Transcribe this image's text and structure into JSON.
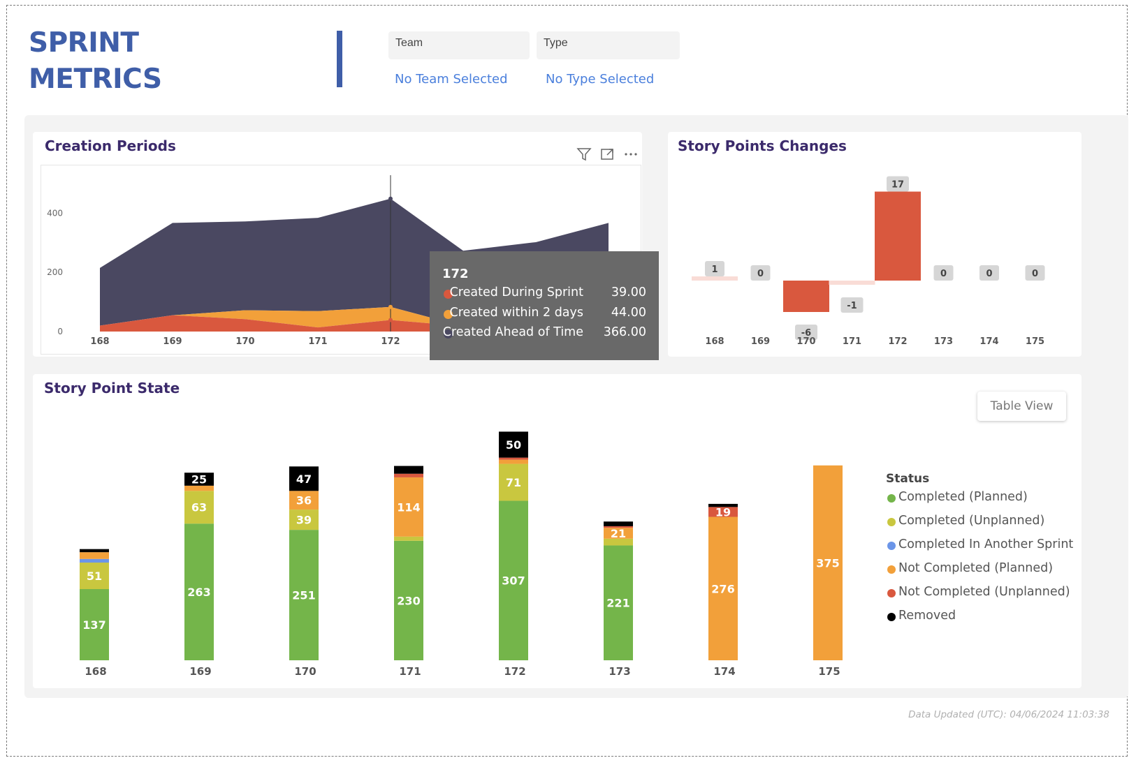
{
  "header": {
    "title_line1": "SPRINT",
    "title_line2": "METRICS",
    "brand_color": "#3f5ea8"
  },
  "filters": {
    "team": {
      "label": "Team",
      "value": "No Team Selected"
    },
    "type": {
      "label": "Type",
      "value": "No Type Selected"
    }
  },
  "creation_periods": {
    "title": "Creation Periods",
    "icons": [
      "filter-icon",
      "focus-mode-icon",
      "more-options-icon"
    ],
    "tooltip": {
      "title": "172",
      "rows": [
        {
          "label": "Created During Sprint",
          "value": "39.00",
          "color": "#d9583e"
        },
        {
          "label": "Created within 2 days",
          "value": "44.00",
          "color": "#f2a03a"
        },
        {
          "label": "Created Ahead of Time",
          "value": "366.00",
          "color": "#4a4861"
        }
      ]
    }
  },
  "story_points_changes": {
    "title": "Story Points Changes"
  },
  "story_point_state": {
    "title": "Story Point State",
    "table_view_label": "Table View",
    "legend": {
      "title": "Status",
      "items": [
        {
          "label": "Completed (Planned)",
          "color": "#74b54a"
        },
        {
          "label": "Completed (Unplanned)",
          "color": "#c9c73f"
        },
        {
          "label": "Completed In Another Sprint",
          "color": "#6b95e8"
        },
        {
          "label": "Not Completed (Planned)",
          "color": "#f2a03a"
        },
        {
          "label": "Not Completed (Unplanned)",
          "color": "#d9583e"
        },
        {
          "label": "Removed",
          "color": "#000000"
        }
      ]
    }
  },
  "footer": {
    "updated": "Data Updated (UTC): 04/06/2024 11:03:38"
  },
  "chart_data": [
    {
      "type": "area",
      "title": "Creation Periods",
      "stacked": true,
      "categories": [
        "168",
        "169",
        "170",
        "171",
        "172",
        "173",
        "174",
        "175"
      ],
      "ylim": [
        0,
        500
      ],
      "yticks": [
        0,
        200,
        400
      ],
      "grid": false,
      "series": [
        {
          "name": "Created During Sprint",
          "color": "#d9583e",
          "values": [
            20,
            55,
            42,
            14,
            39,
            18,
            15,
            17
          ]
        },
        {
          "name": "Created within 2 days",
          "color": "#f2a03a",
          "values": [
            0,
            0,
            30,
            55,
            44,
            0,
            0,
            0
          ]
        },
        {
          "name": "Created Ahead of Time",
          "color": "#4a4861",
          "values": [
            195,
            312,
            300,
            315,
            366,
            255,
            287,
            350
          ]
        }
      ],
      "hover_category": "172"
    },
    {
      "type": "bar",
      "title": "Story Points Changes",
      "categories": [
        "168",
        "169",
        "170",
        "171",
        "172",
        "173",
        "174",
        "175"
      ],
      "values": [
        1,
        0,
        -6,
        -1,
        17,
        0,
        0,
        0
      ],
      "labels": [
        "1",
        "0",
        "-6",
        "-1",
        "17",
        "0",
        "0",
        "0"
      ],
      "color_large": "#d9583e",
      "color_small": "#f9dcd6",
      "ylim": [
        -8,
        19
      ]
    },
    {
      "type": "bar",
      "stacked": true,
      "title": "Story Point State",
      "categories": [
        "168",
        "169",
        "170",
        "171",
        "172",
        "173",
        "174",
        "175"
      ],
      "ymax": 454,
      "series": [
        {
          "name": "Completed (Planned)",
          "color": "#74b54a",
          "values": [
            137,
            263,
            251,
            230,
            307,
            221,
            0,
            0
          ],
          "labels": [
            "137",
            "263",
            "251",
            "230",
            "307",
            "221",
            "",
            ""
          ]
        },
        {
          "name": "Completed (Unplanned)",
          "color": "#c9c73f",
          "values": [
            51,
            63,
            39,
            8,
            71,
            13,
            0,
            0
          ],
          "labels": [
            "51",
            "63",
            "39",
            "",
            "71",
            "",
            "",
            ""
          ]
        },
        {
          "name": "Completed In Another Sprint",
          "color": "#6b95e8",
          "values": [
            7,
            0,
            0,
            0,
            0,
            0,
            0,
            0
          ],
          "labels": [
            "",
            "",
            "",
            "",
            "",
            "",
            "",
            ""
          ]
        },
        {
          "name": "Not Completed (Planned)",
          "color": "#f2a03a",
          "values": [
            13,
            10,
            36,
            114,
            8,
            21,
            276,
            375
          ],
          "labels": [
            "",
            "",
            "36",
            "114",
            "",
            "21",
            "276",
            "375"
          ]
        },
        {
          "name": "Not Completed (Unplanned)",
          "color": "#d9583e",
          "values": [
            0,
            0,
            0,
            7,
            4,
            3,
            19,
            0
          ],
          "labels": [
            "",
            "",
            "",
            "",
            "",
            "",
            "19",
            ""
          ]
        },
        {
          "name": "Removed",
          "color": "#000000",
          "values": [
            6,
            25,
            47,
            15,
            50,
            9,
            6,
            0
          ],
          "labels": [
            "",
            "25",
            "47",
            "",
            "50",
            "",
            "",
            ""
          ]
        }
      ]
    }
  ]
}
